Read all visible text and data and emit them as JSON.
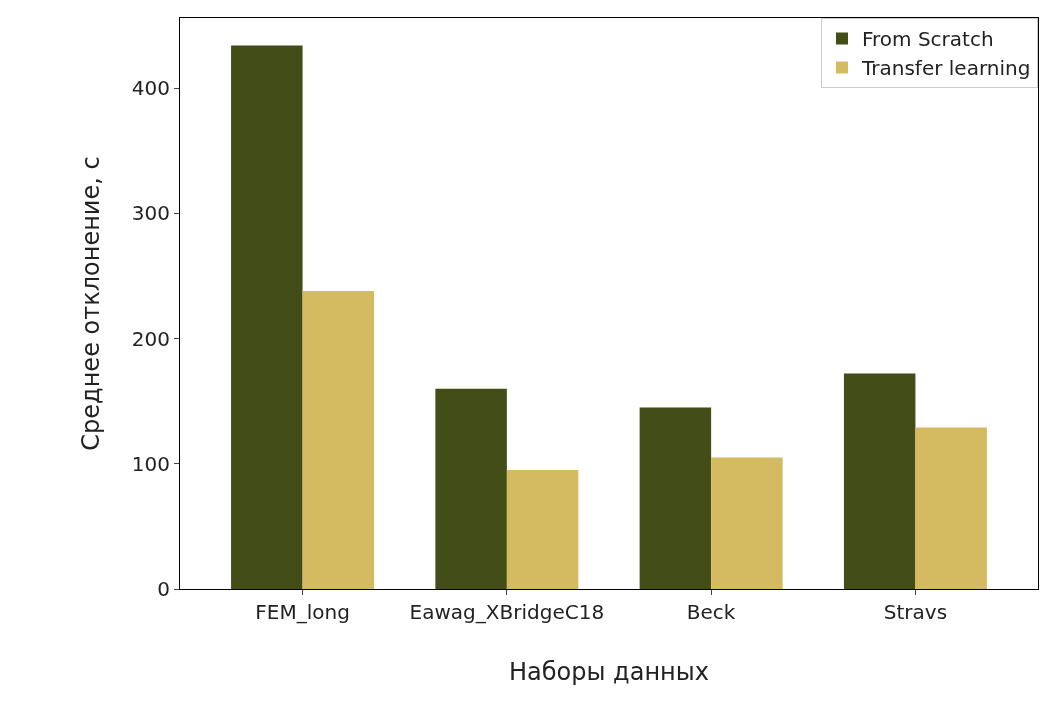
{
  "chart_data": {
    "type": "bar",
    "xlabel": "Наборы данных",
    "ylabel": "Среднее отклонение, с",
    "categories": [
      "FEM_long",
      "Eawag_XBridgeC18",
      "Beck",
      "Stravs"
    ],
    "series": [
      {
        "name": "From Scratch",
        "color": "#434d17",
        "values": [
          434,
          160,
          145,
          172
        ]
      },
      {
        "name": "Transfer learning",
        "color": "#d4bb62",
        "values": [
          238,
          95,
          105,
          129
        ]
      }
    ],
    "ylim": [
      0,
      456
    ],
    "yticks": [
      0,
      100,
      200,
      300,
      400
    ],
    "grid": false,
    "legend": "top right"
  }
}
